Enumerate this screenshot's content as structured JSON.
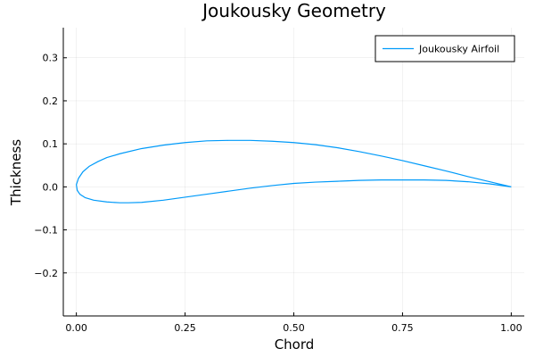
{
  "chart_data": {
    "type": "line",
    "title": "Joukousky Geometry",
    "xlabel": "Chord",
    "ylabel": "Thickness",
    "xlim": [
      -0.03,
      1.03
    ],
    "ylim": [
      -0.3,
      0.37
    ],
    "xticks": [
      0.0,
      0.25,
      0.5,
      0.75,
      1.0
    ],
    "xtick_labels": [
      "0.00",
      "0.25",
      "0.50",
      "0.75",
      "1.00"
    ],
    "yticks": [
      -0.2,
      -0.1,
      0.0,
      0.1,
      0.2,
      0.3
    ],
    "ytick_labels": [
      "−0.2",
      "−0.1",
      "0.0",
      "0.1",
      "0.2",
      "0.3"
    ],
    "grid": true,
    "legend_position": "top-right",
    "series": [
      {
        "name": "Joukousky Airfoil",
        "color": "#009af9",
        "x": [
          1.0,
          0.95,
          0.9,
          0.85,
          0.8,
          0.75,
          0.7,
          0.65,
          0.6,
          0.55,
          0.5,
          0.45,
          0.4,
          0.35,
          0.3,
          0.25,
          0.2,
          0.15,
          0.1,
          0.07,
          0.05,
          0.03,
          0.015,
          0.005,
          0.0,
          0.002,
          0.008,
          0.02,
          0.04,
          0.07,
          0.1,
          0.12,
          0.15,
          0.2,
          0.25,
          0.3,
          0.35,
          0.4,
          0.45,
          0.5,
          0.55,
          0.6,
          0.65,
          0.7,
          0.75,
          0.8,
          0.85,
          0.9,
          0.95,
          1.0
        ],
        "y": [
          0.0,
          0.012,
          0.024,
          0.037,
          0.049,
          0.061,
          0.072,
          0.082,
          0.091,
          0.098,
          0.103,
          0.106,
          0.108,
          0.108,
          0.107,
          0.103,
          0.097,
          0.089,
          0.077,
          0.068,
          0.059,
          0.048,
          0.035,
          0.02,
          0.005,
          -0.008,
          -0.017,
          -0.025,
          -0.031,
          -0.035,
          -0.037,
          -0.037,
          -0.036,
          -0.031,
          -0.024,
          -0.017,
          -0.01,
          -0.003,
          0.003,
          0.008,
          0.011,
          0.013,
          0.015,
          0.016,
          0.016,
          0.016,
          0.015,
          0.012,
          0.007,
          0.0
        ]
      }
    ]
  }
}
